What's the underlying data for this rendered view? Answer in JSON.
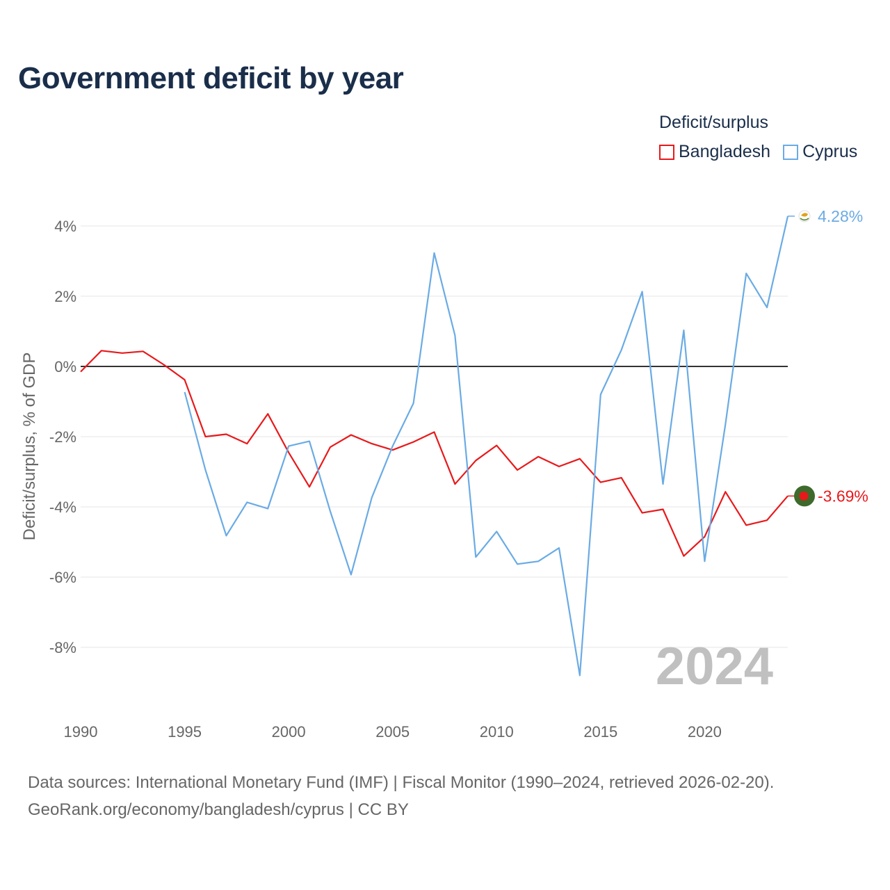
{
  "title": "Government deficit by year",
  "legend": {
    "title": "Deficit/surplus",
    "items": [
      {
        "label": "Bangladesh",
        "color": "#e8191b"
      },
      {
        "label": "Cyprus",
        "color": "#6aabe4"
      }
    ]
  },
  "sources": {
    "line1": "Data sources: International Monetary Fund (IMF) | Fiscal Monitor (1990–2024, retrieved 2026-02-20).",
    "line2": "GeoRank.org/economy/bangladesh/cyprus | CC BY"
  },
  "chart_data": {
    "type": "line",
    "title": "Government deficit by year",
    "xlabel": "",
    "ylabel": "Deficit/surplus, % of GDP",
    "xlim": [
      1990,
      2024
    ],
    "ylim": [
      -10,
      4.5
    ],
    "x_ticks": [
      {
        "value": 1990,
        "label": "1990"
      },
      {
        "value": 1995,
        "label": "1995"
      },
      {
        "value": 2000,
        "label": "2000"
      },
      {
        "value": 2005,
        "label": "2005"
      },
      {
        "value": 2010,
        "label": "2010"
      },
      {
        "value": 2015,
        "label": "2015"
      },
      {
        "value": 2020,
        "label": "2020"
      }
    ],
    "y_ticks": [
      {
        "value": 4,
        "label": "4%"
      },
      {
        "value": 2,
        "label": "2%"
      },
      {
        "value": 0,
        "label": "0%"
      },
      {
        "value": -2,
        "label": "-2%"
      },
      {
        "value": -4,
        "label": "-4%"
      },
      {
        "value": -6,
        "label": "-6%"
      },
      {
        "value": -8,
        "label": "-8%"
      }
    ],
    "grid": true,
    "zero_line": true,
    "watermark_year": "2024",
    "series": [
      {
        "name": "Bangladesh",
        "color": "#e8191b",
        "end_label": "-3.69%",
        "x": [
          1990,
          1991,
          1992,
          1993,
          1994,
          1995,
          1996,
          1997,
          1998,
          1999,
          2000,
          2001,
          2002,
          2003,
          2004,
          2005,
          2006,
          2007,
          2008,
          2009,
          2010,
          2011,
          2012,
          2013,
          2014,
          2015,
          2016,
          2017,
          2018,
          2019,
          2020,
          2021,
          2022,
          2023,
          2024
        ],
        "values": [
          -0.15,
          0.45,
          0.38,
          0.43,
          0.05,
          -0.38,
          -2.0,
          -1.93,
          -2.2,
          -1.35,
          -2.45,
          -3.43,
          -2.3,
          -1.95,
          -2.2,
          -2.38,
          -2.15,
          -1.87,
          -3.35,
          -2.68,
          -2.25,
          -2.95,
          -2.57,
          -2.85,
          -2.63,
          -3.3,
          -3.17,
          -4.17,
          -4.07,
          -5.4,
          -4.85,
          -3.57,
          -4.52,
          -4.38,
          -3.69
        ]
      },
      {
        "name": "Cyprus",
        "color": "#6aabe4",
        "end_label": "4.28%",
        "x": [
          1995,
          1996,
          1997,
          1998,
          1999,
          2000,
          2001,
          2002,
          2003,
          2004,
          2005,
          2006,
          2007,
          2008,
          2009,
          2010,
          2011,
          2012,
          2013,
          2014,
          2015,
          2016,
          2017,
          2018,
          2019,
          2020,
          2021,
          2022,
          2023,
          2024
        ],
        "values": [
          -0.73,
          -2.95,
          -4.82,
          -3.87,
          -4.05,
          -2.27,
          -2.13,
          -4.12,
          -5.93,
          -3.73,
          -2.27,
          -1.05,
          3.23,
          0.88,
          -5.43,
          -4.7,
          -5.63,
          -5.55,
          -5.17,
          -8.8,
          -0.8,
          0.47,
          2.13,
          -3.35,
          1.03,
          -5.55,
          -1.65,
          2.65,
          1.68,
          4.28
        ]
      }
    ]
  }
}
